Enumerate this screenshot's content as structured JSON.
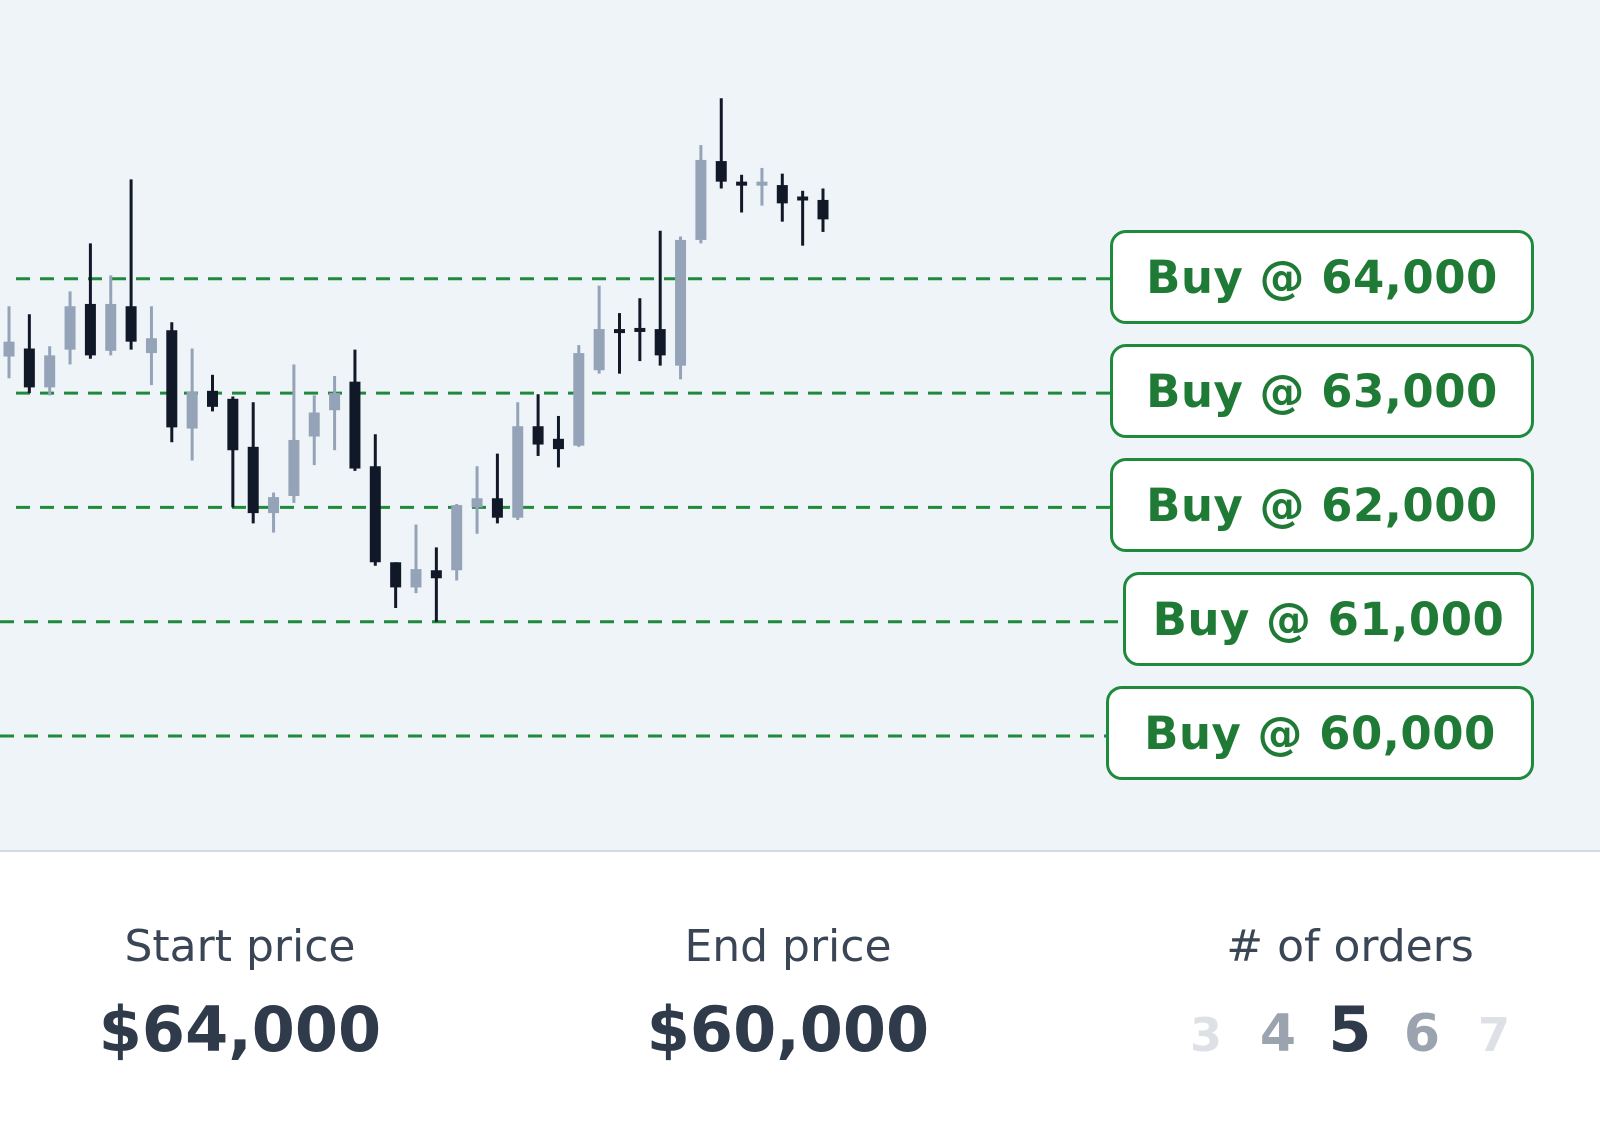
{
  "chart_data": {
    "type": "candlestick",
    "levels": [
      64000,
      63000,
      62000,
      61000,
      60000
    ],
    "y_range": [
      59000,
      65200
    ],
    "candles": [
      {
        "o": 63450,
        "h": 63760,
        "l": 63130,
        "c": 63320,
        "dir": "up"
      },
      {
        "o": 63390,
        "h": 63690,
        "l": 63000,
        "c": 63050,
        "dir": "down"
      },
      {
        "o": 63050,
        "h": 63410,
        "l": 62980,
        "c": 63330,
        "dir": "up"
      },
      {
        "o": 63380,
        "h": 63890,
        "l": 63250,
        "c": 63760,
        "dir": "up"
      },
      {
        "o": 63780,
        "h": 64310,
        "l": 63300,
        "c": 63330,
        "dir": "down"
      },
      {
        "o": 63370,
        "h": 64030,
        "l": 63330,
        "c": 63780,
        "dir": "up"
      },
      {
        "o": 63760,
        "h": 64870,
        "l": 63380,
        "c": 63450,
        "dir": "down"
      },
      {
        "o": 63350,
        "h": 63760,
        "l": 63070,
        "c": 63480,
        "dir": "up"
      },
      {
        "o": 63550,
        "h": 63620,
        "l": 62570,
        "c": 62700,
        "dir": "down"
      },
      {
        "o": 62690,
        "h": 63390,
        "l": 62410,
        "c": 63010,
        "dir": "up"
      },
      {
        "o": 63020,
        "h": 63160,
        "l": 62840,
        "c": 62880,
        "dir": "down"
      },
      {
        "o": 62950,
        "h": 62970,
        "l": 62000,
        "c": 62500,
        "dir": "down"
      },
      {
        "o": 62530,
        "h": 62920,
        "l": 61860,
        "c": 61950,
        "dir": "down"
      },
      {
        "o": 61950,
        "h": 62130,
        "l": 61780,
        "c": 62090,
        "dir": "up"
      },
      {
        "o": 62100,
        "h": 63250,
        "l": 62040,
        "c": 62590,
        "dir": "up"
      },
      {
        "o": 62620,
        "h": 62980,
        "l": 62370,
        "c": 62830,
        "dir": "up"
      },
      {
        "o": 62850,
        "h": 63150,
        "l": 62500,
        "c": 63000,
        "dir": "up"
      },
      {
        "o": 63100,
        "h": 63380,
        "l": 62320,
        "c": 62340,
        "dir": "down"
      },
      {
        "o": 62360,
        "h": 62640,
        "l": 61490,
        "c": 61520,
        "dir": "down"
      },
      {
        "o": 61520,
        "h": 61520,
        "l": 61120,
        "c": 61300,
        "dir": "down"
      },
      {
        "o": 61300,
        "h": 61850,
        "l": 61250,
        "c": 61460,
        "dir": "up"
      },
      {
        "o": 61450,
        "h": 61650,
        "l": 61000,
        "c": 61380,
        "dir": "down"
      },
      {
        "o": 61450,
        "h": 62030,
        "l": 61360,
        "c": 62020,
        "dir": "up"
      },
      {
        "o": 62000,
        "h": 62360,
        "l": 61770,
        "c": 62080,
        "dir": "up"
      },
      {
        "o": 62080,
        "h": 62470,
        "l": 61860,
        "c": 61910,
        "dir": "down"
      },
      {
        "o": 61910,
        "h": 62920,
        "l": 61890,
        "c": 62710,
        "dir": "up"
      },
      {
        "o": 62710,
        "h": 62990,
        "l": 62450,
        "c": 62550,
        "dir": "down"
      },
      {
        "o": 62600,
        "h": 62800,
        "l": 62350,
        "c": 62510,
        "dir": "down"
      },
      {
        "o": 62540,
        "h": 63420,
        "l": 62530,
        "c": 63350,
        "dir": "up"
      },
      {
        "o": 63200,
        "h": 63940,
        "l": 63170,
        "c": 63560,
        "dir": "up"
      },
      {
        "o": 63560,
        "h": 63700,
        "l": 63170,
        "c": 63560,
        "dir": "down"
      },
      {
        "o": 63570,
        "h": 63830,
        "l": 63280,
        "c": 63550,
        "dir": "down"
      },
      {
        "o": 63560,
        "h": 64420,
        "l": 63240,
        "c": 63330,
        "dir": "down"
      },
      {
        "o": 63240,
        "h": 64370,
        "l": 63120,
        "c": 64340,
        "dir": "up"
      },
      {
        "o": 64340,
        "h": 65170,
        "l": 64310,
        "c": 65040,
        "dir": "up"
      },
      {
        "o": 65030,
        "h": 65580,
        "l": 64790,
        "c": 64850,
        "dir": "down"
      },
      {
        "o": 64850,
        "h": 64910,
        "l": 64580,
        "c": 64850,
        "dir": "down"
      },
      {
        "o": 64850,
        "h": 64970,
        "l": 64640,
        "c": 64830,
        "dir": "up"
      },
      {
        "o": 64820,
        "h": 64920,
        "l": 64500,
        "c": 64660,
        "dir": "down"
      },
      {
        "o": 64720,
        "h": 64770,
        "l": 64290,
        "c": 64690,
        "dir": "down"
      },
      {
        "o": 64690,
        "h": 64790,
        "l": 64410,
        "c": 64520,
        "dir": "down"
      }
    ]
  },
  "orders": [
    {
      "label": "Buy @ 64,000"
    },
    {
      "label": "Buy @ 63,000"
    },
    {
      "label": "Buy @ 62,000"
    },
    {
      "label": "Buy @ 61,000"
    },
    {
      "label": "Buy @ 60,000"
    }
  ],
  "stats": {
    "start_label": "Start price",
    "start_value": "$64,000",
    "end_label": "End price",
    "end_value": "$60,000",
    "orders_label": "# of orders",
    "order_options": [
      "3",
      "4",
      "5",
      "6",
      "7"
    ],
    "selected_option": "5"
  },
  "colors": {
    "up_candle": "#94a3b8",
    "down_candle": "#111827",
    "grid_line": "#1f8a3b"
  }
}
